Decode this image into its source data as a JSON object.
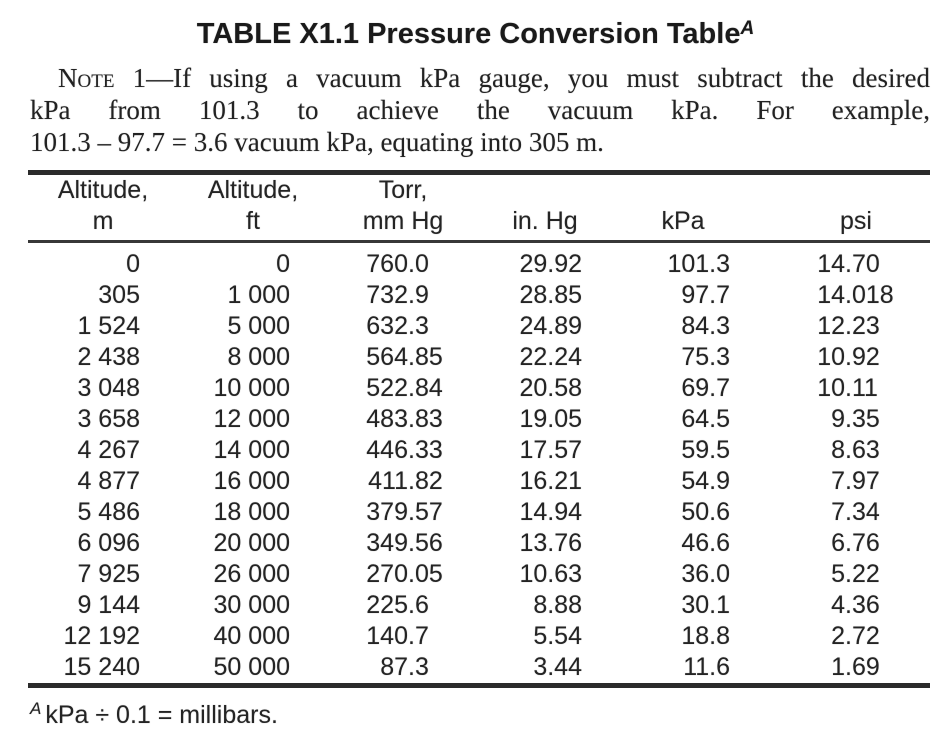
{
  "title": {
    "text": "TABLE X1.1 Pressure Conversion Table",
    "superscript": "A"
  },
  "note": {
    "label": "Note",
    "line1": " 1—If using a vacuum kPa gauge, you must subtract the desired",
    "line2": "kPa from 101.3 to achieve the vacuum kPa. For example,",
    "line3": "101.3 – 97.7 = 3.6 vacuum kPa, equating into 305 m."
  },
  "table": {
    "columns": [
      {
        "line1": "Altitude,",
        "line2": "m"
      },
      {
        "line1": "Altitude,",
        "line2": "ft"
      },
      {
        "line1": "Torr,",
        "line2": "mm Hg"
      },
      {
        "line1": "",
        "line2": "in. Hg"
      },
      {
        "line1": "",
        "line2": "kPa"
      },
      {
        "line1": "",
        "line2": "psi"
      }
    ],
    "rows": [
      [
        "0",
        "0",
        "760.0",
        "29.92",
        "101.3",
        "14.70"
      ],
      [
        "305",
        "1 000",
        "732.9",
        "28.85",
        "97.7",
        "14.018"
      ],
      [
        "1 524",
        "5 000",
        "632.3",
        "24.89",
        "84.3",
        "12.23"
      ],
      [
        "2 438",
        "8 000",
        "564.85",
        "22.24",
        "75.3",
        "10.92"
      ],
      [
        "3 048",
        "10 000",
        "522.84",
        "20.58",
        "69.7",
        "10.11"
      ],
      [
        "3 658",
        "12 000",
        "483.83",
        "19.05",
        "64.5",
        "9.35"
      ],
      [
        "4 267",
        "14 000",
        "446.33",
        "17.57",
        "59.5",
        "8.63"
      ],
      [
        "4 877",
        "16 000",
        "411.82",
        "16.21",
        "54.9",
        "7.97"
      ],
      [
        "5 486",
        "18 000",
        "379.57",
        "14.94",
        "50.6",
        "7.34"
      ],
      [
        "6 096",
        "20 000",
        "349.56",
        "13.76",
        "46.6",
        "6.76"
      ],
      [
        "7 925",
        "26 000",
        "270.05",
        "10.63",
        "36.0",
        "5.22"
      ],
      [
        "9 144",
        "30 000",
        "225.6",
        "8.88",
        "30.1",
        "4.36"
      ],
      [
        "12 192",
        "40 000",
        "140.7",
        "5.54",
        "18.8",
        "2.72"
      ],
      [
        "15 240",
        "50 000",
        "87.3",
        "3.44",
        "11.6",
        "1.69"
      ]
    ]
  },
  "footnote": {
    "superscript": "A",
    "text": "kPa ÷ 0.1 = millibars."
  },
  "colors": {
    "text": "#1e1e1e",
    "rule": "#2b2b2b",
    "background": "#ffffff"
  }
}
